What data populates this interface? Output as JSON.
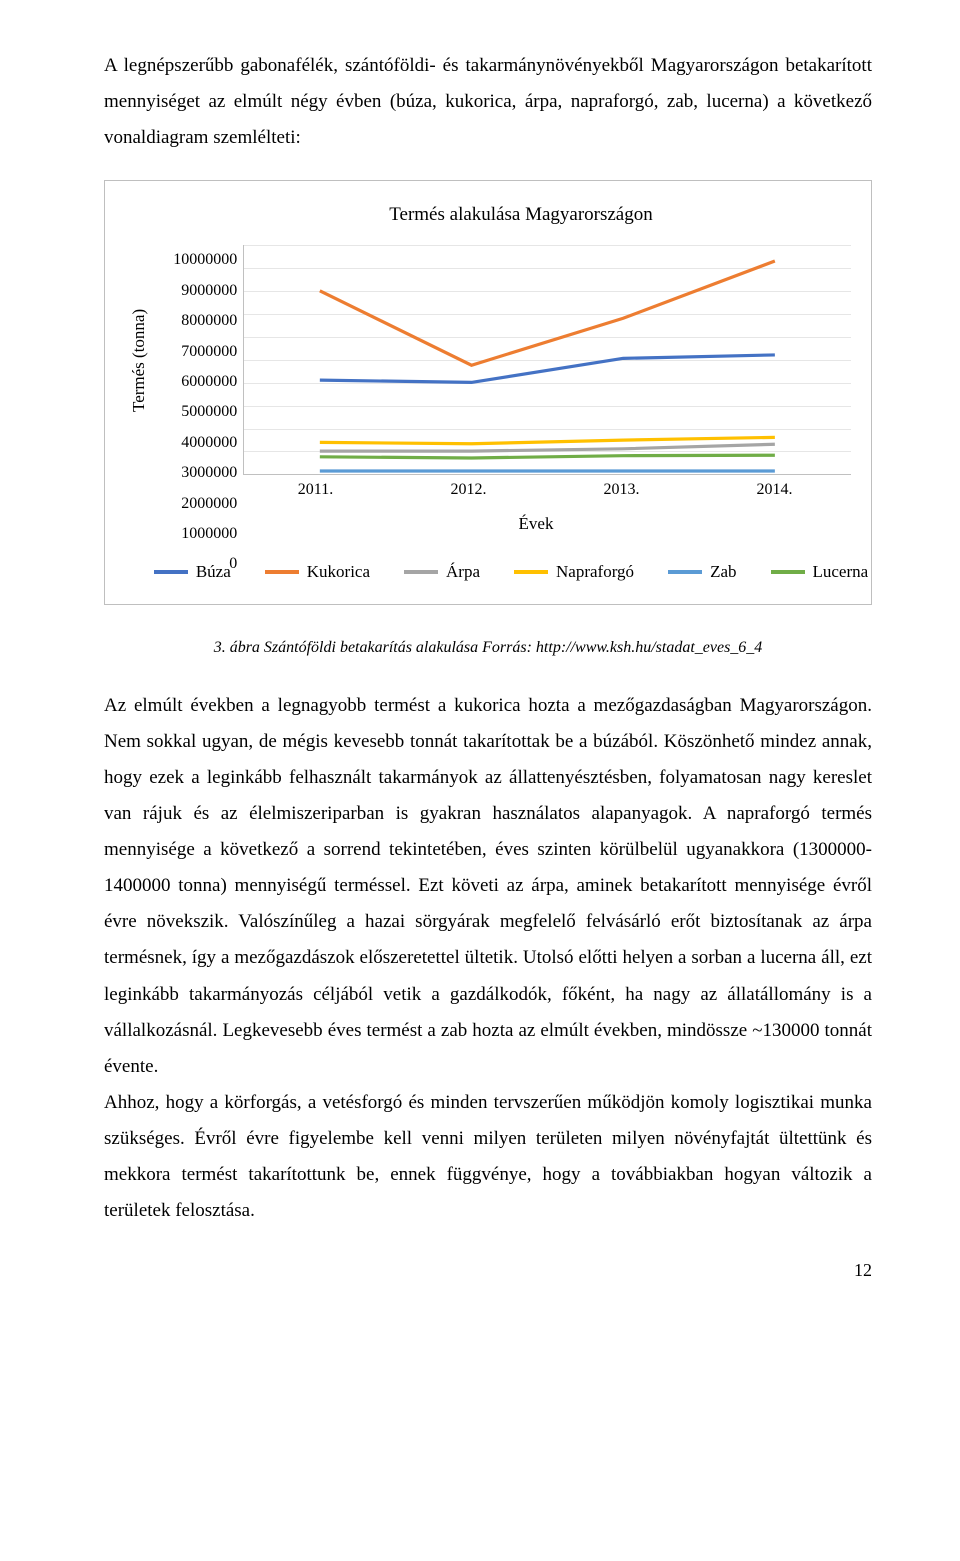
{
  "intro": "A legnépszerűbb gabonafélék, szántóföldi- és takarmánynövényekből Magyarországon betakarított mennyiséget az elmúlt négy évben (búza, kukorica, árpa, napraforgó, zab, lucerna) a következő vonaldiagram szemlélteti:",
  "chart": {
    "type": "line",
    "title": "Termés alakulása Magyarországon",
    "ylabel": "Termés (tonna)",
    "xlabel": "Évek",
    "xticks": [
      "2011.",
      "2012.",
      "2013.",
      "2014."
    ],
    "ylim": [
      0,
      10000000
    ],
    "ytick_step": 1000000,
    "yticks": [
      "10000000",
      "9000000",
      "8000000",
      "7000000",
      "6000000",
      "5000000",
      "4000000",
      "3000000",
      "2000000",
      "1000000",
      "0"
    ],
    "grid_color": "#e6e6e6",
    "axis_color": "#c0c0c0",
    "background_color": "#ffffff",
    "line_width": 3.2,
    "series": [
      {
        "name": "Búza",
        "color": "#4472c4",
        "values": [
          4100000,
          4000000,
          5050000,
          5200000
        ]
      },
      {
        "name": "Kukorica",
        "color": "#ed7d31",
        "values": [
          8000000,
          4750000,
          6800000,
          9300000
        ]
      },
      {
        "name": "Árpa",
        "color": "#a5a5a5",
        "values": [
          1000000,
          1000000,
          1100000,
          1300000
        ]
      },
      {
        "name": "Napraforgó",
        "color": "#ffc000",
        "values": [
          1380000,
          1320000,
          1480000,
          1600000
        ]
      },
      {
        "name": "Zab",
        "color": "#5b9bd5",
        "values": [
          130000,
          130000,
          130000,
          130000
        ]
      },
      {
        "name": "Lucerna",
        "color": "#70ad47",
        "values": [
          750000,
          700000,
          800000,
          820000
        ]
      }
    ],
    "legend_labels": [
      "Búza",
      "Kukorica",
      "Árpa",
      "Napraforgó",
      "Zab",
      "Lucerna"
    ]
  },
  "caption": "3. ábra Szántóföldi betakarítás alakulása Forrás: http://www.ksh.hu/stadat_eves_6_4",
  "body": {
    "p1": "Az elmúlt években a legnagyobb termést a kukorica hozta a mezőgazdaságban Magyarországon. Nem sokkal ugyan, de mégis kevesebb tonnát takarítottak be a búzából. Köszönhető mindez annak, hogy ezek a leginkább felhasznált takarmányok az állattenyésztésben, folyamatosan nagy kereslet van rájuk és az élelmiszeriparban is gyakran használatos alapanyagok. A napraforgó termés mennyisége a következő a sorrend tekintetében, éves szinten körülbelül ugyanakkora (1300000-1400000 tonna) mennyiségű terméssel. Ezt követi az árpa, aminek betakarított mennyisége évről évre növekszik. Valószínűleg a hazai sörgyárak megfelelő felvásárló erőt biztosítanak az árpa termésnek, így a mezőgazdászok előszeretettel ültetik. Utolsó előtti helyen a sorban a lucerna áll, ezt leginkább takarmányozás céljából vetik a gazdálkodók, főként, ha nagy az állatállomány is a vállalkozásnál. Legkevesebb éves termést a zab hozta az elmúlt években, mindössze ~130000 tonnát évente.",
    "p2": "Ahhoz, hogy a körforgás, a vetésforgó és minden tervszerűen működjön komoly logisztikai munka szükséges. Évről évre figyelembe kell venni milyen területen milyen növényfajtát ültettünk és mekkora termést takarítottunk be, ennek függvénye, hogy a továbbiakban hogyan változik a területek felosztása."
  },
  "page_number": "12"
}
